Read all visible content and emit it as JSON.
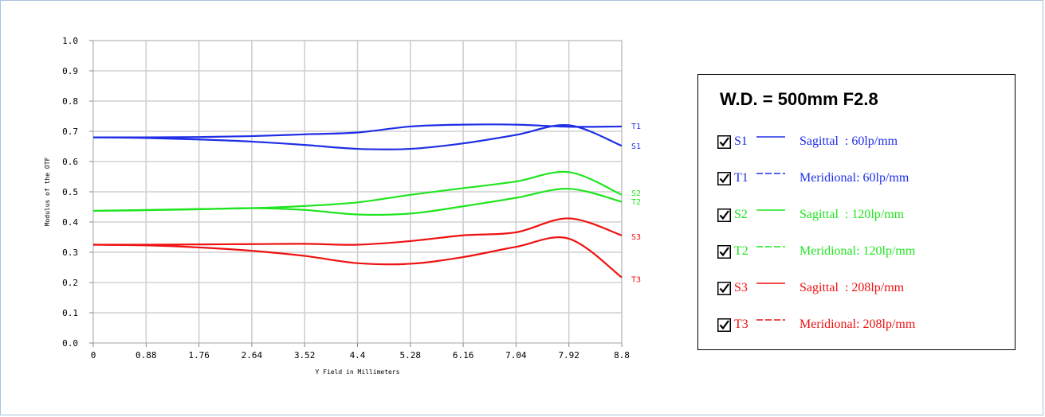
{
  "colors": {
    "blue": "#1f2ee6",
    "green": "#1fe51f",
    "red": "#ee1111",
    "grid": "#d0d0d0"
  },
  "chart_data": {
    "type": "line",
    "xlabel": "Y Field in Millimeters",
    "ylabel": "Modulus of the OTF",
    "xlim": [
      0,
      8.8
    ],
    "ylim": [
      0.0,
      1.0
    ],
    "x_ticks": [
      "0",
      "0.88",
      "1.76",
      "2.64",
      "3.52",
      "4.4",
      "5.28",
      "6.16",
      "7.04",
      "7.92",
      "8.8"
    ],
    "y_ticks": [
      "0.0",
      "0.1",
      "0.2",
      "0.3",
      "0.4",
      "0.5",
      "0.6",
      "0.7",
      "0.8",
      "0.9",
      "1.0"
    ],
    "grid": true,
    "series": [
      {
        "name": "T1",
        "color": "#1f2ee6",
        "x": [
          0,
          0.88,
          1.76,
          2.64,
          3.52,
          4.4,
          5.28,
          6.16,
          7.04,
          7.92,
          8.8
        ],
        "y": [
          0.68,
          0.68,
          0.681,
          0.684,
          0.69,
          0.696,
          0.716,
          0.722,
          0.722,
          0.715,
          0.716
        ]
      },
      {
        "name": "S1",
        "color": "#1f2ee6",
        "x": [
          0,
          0.88,
          1.76,
          2.64,
          3.52,
          4.4,
          5.28,
          6.16,
          7.04,
          7.92,
          8.8
        ],
        "y": [
          0.68,
          0.678,
          0.673,
          0.666,
          0.655,
          0.642,
          0.642,
          0.66,
          0.688,
          0.72,
          0.652
        ]
      },
      {
        "name": "S2",
        "color": "#1fe51f",
        "x": [
          0,
          0.88,
          1.76,
          2.64,
          3.52,
          4.4,
          5.28,
          6.16,
          7.04,
          7.92,
          8.8
        ],
        "y": [
          0.437,
          0.44,
          0.443,
          0.446,
          0.453,
          0.465,
          0.49,
          0.512,
          0.534,
          0.565,
          0.49
        ]
      },
      {
        "name": "T2",
        "color": "#1fe51f",
        "x": [
          0,
          0.88,
          1.76,
          2.64,
          3.52,
          4.4,
          5.28,
          6.16,
          7.04,
          7.92,
          8.8
        ],
        "y": [
          0.437,
          0.439,
          0.442,
          0.446,
          0.44,
          0.425,
          0.428,
          0.452,
          0.48,
          0.51,
          0.467
        ]
      },
      {
        "name": "S3",
        "color": "#ee1111",
        "x": [
          0,
          0.88,
          1.76,
          2.64,
          3.52,
          4.4,
          5.28,
          6.16,
          7.04,
          7.92,
          8.8
        ],
        "y": [
          0.325,
          0.325,
          0.326,
          0.327,
          0.328,
          0.325,
          0.337,
          0.356,
          0.366,
          0.412,
          0.356
        ]
      },
      {
        "name": "T3",
        "color": "#ee1111",
        "x": [
          0,
          0.88,
          1.76,
          2.64,
          3.52,
          4.4,
          5.28,
          6.16,
          7.04,
          7.92,
          8.8
        ],
        "y": [
          0.325,
          0.323,
          0.316,
          0.305,
          0.288,
          0.264,
          0.262,
          0.284,
          0.318,
          0.345,
          0.217
        ]
      }
    ],
    "end_labels": [
      {
        "text": "T1",
        "y": 0.718,
        "color": "#1f2ee6"
      },
      {
        "text": "S1",
        "y": 0.652,
        "color": "#1f2ee6"
      },
      {
        "text": "S2",
        "y": 0.497,
        "color": "#1fe51f"
      },
      {
        "text": "T2",
        "y": 0.468,
        "color": "#1fe51f"
      },
      {
        "text": "S3",
        "y": 0.353,
        "color": "#ee1111"
      },
      {
        "text": "T3",
        "y": 0.212,
        "color": "#ee1111"
      }
    ]
  },
  "legend": {
    "title": "W.D. = 500mm F2.8",
    "rows": [
      {
        "series": "S1",
        "desc": "Sagittal  : 60lp/mm",
        "color": "#1f2ee6",
        "dashed": false
      },
      {
        "series": "T1",
        "desc": "Meridional: 60lp/mm",
        "color": "#1f2ee6",
        "dashed": true
      },
      {
        "series": "S2",
        "desc": "Sagittal  : 120lp/mm",
        "color": "#1fe51f",
        "dashed": false
      },
      {
        "series": "T2",
        "desc": "Meridional: 120lp/mm",
        "color": "#1fe51f",
        "dashed": true
      },
      {
        "series": "S3",
        "desc": "Sagittal  : 208lp/mm",
        "color": "#ee1111",
        "dashed": false
      },
      {
        "series": "T3",
        "desc": "Meridional: 208lp/mm",
        "color": "#ee1111",
        "dashed": true
      }
    ]
  }
}
